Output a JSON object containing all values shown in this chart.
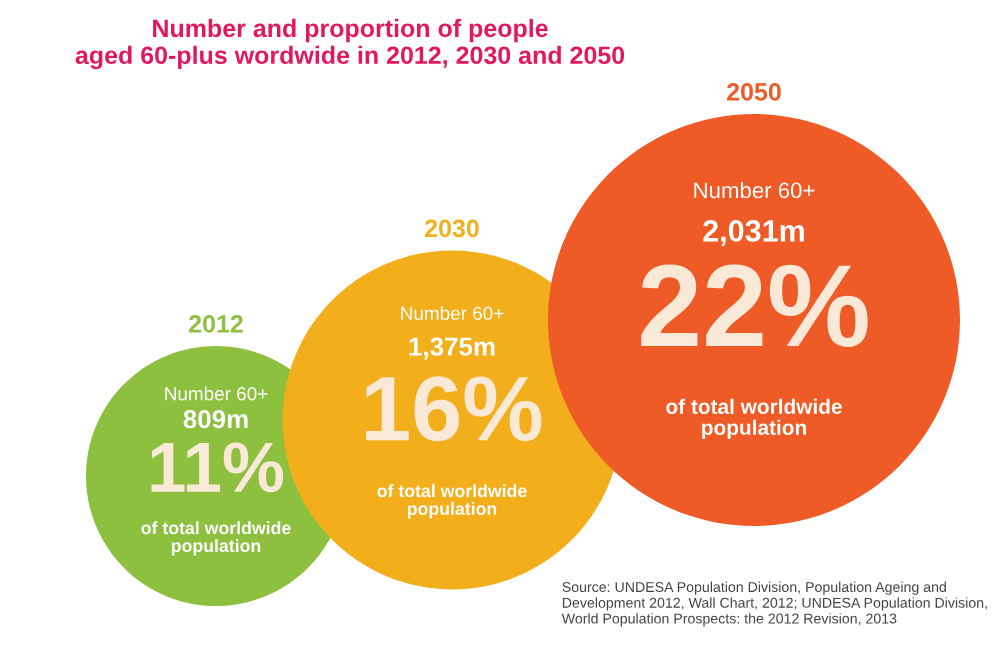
{
  "chart_data": {
    "type": "other",
    "title": "Number and proportion of people\naged 60-plus wordwide in 2012, 2030 and 2050",
    "categories": [
      "2012",
      "2030",
      "2050"
    ],
    "series": [
      {
        "name": "Number 60+",
        "values": [
          809,
          1375,
          2031
        ],
        "value_labels": [
          "809m",
          "1,375m",
          "2,031m"
        ],
        "colors": [
          "#8dc03f",
          "#f3ae1b",
          "#ef5b26"
        ]
      },
      {
        "name": "of total worldwide\npopulation",
        "values": [
          11,
          16,
          22
        ],
        "value_labels": [
          "11%",
          "16%",
          "22%"
        ]
      }
    ],
    "annotations": [
      "Source: UNDESA Population Division, Population Ageing and\nDevelopment 2012, Wall Chart, 2012; UNDESA Population Division,\nWorld Population Prospects: the 2012 Revision, 2013"
    ]
  }
}
